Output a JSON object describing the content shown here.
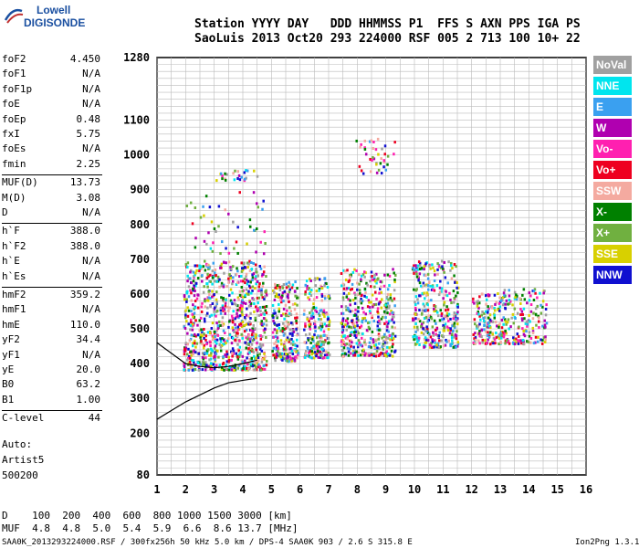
{
  "logo": {
    "line1": "Lowell",
    "line2": "DIGISONDE"
  },
  "header": {
    "labels": "Station YYYY DAY   DDD HHMMSS P1  FFS S AXN PPS IGA PS",
    "values": "SaoLuis 2013 Oct20 293 224000 RSF 005 2 713 100 10+ 22"
  },
  "params": [
    {
      "label": "foF2",
      "value": "4.450"
    },
    {
      "label": "foF1",
      "value": "N/A"
    },
    {
      "label": "foF1p",
      "value": "N/A"
    },
    {
      "label": "foE",
      "value": "N/A"
    },
    {
      "label": "foEp",
      "value": "0.48"
    },
    {
      "label": "fxI",
      "value": "5.75"
    },
    {
      "label": "foEs",
      "value": "N/A"
    },
    {
      "label": "fmin",
      "value": "2.25"
    },
    {
      "label": "MUF(D)",
      "value": "13.73"
    },
    {
      "label": "M(D)",
      "value": "3.08"
    },
    {
      "label": "D",
      "value": "N/A"
    },
    {
      "label": "h`F",
      "value": "388.0"
    },
    {
      "label": "h`F2",
      "value": "388.0"
    },
    {
      "label": "h`E",
      "value": "N/A"
    },
    {
      "label": "h`Es",
      "value": "N/A"
    },
    {
      "label": "hmF2",
      "value": "359.2"
    },
    {
      "label": "hmF1",
      "value": "N/A"
    },
    {
      "label": "hmE",
      "value": "110.0"
    },
    {
      "label": "yF2",
      "value": "34.4"
    },
    {
      "label": "yF1",
      "value": "N/A"
    },
    {
      "label": "yE",
      "value": "20.0"
    },
    {
      "label": "B0",
      "value": "63.2"
    },
    {
      "label": "B1",
      "value": "1.00"
    },
    {
      "label": "C-level",
      "value": "44"
    }
  ],
  "auto": {
    "line1": "Auto:",
    "line2": "Artist5",
    "line3": "500200"
  },
  "legend": [
    {
      "label": "NoVal",
      "color": "#a0a0a0"
    },
    {
      "label": "NNE",
      "color": "#00e5ee"
    },
    {
      "label": "E",
      "color": "#3aa0f0"
    },
    {
      "label": "W",
      "color": "#b000b0"
    },
    {
      "label": "Vo-",
      "color": "#ff20b0"
    },
    {
      "label": "Vo+",
      "color": "#ee0020"
    },
    {
      "label": "SSW",
      "color": "#f4aaa0"
    },
    {
      "label": "X-",
      "color": "#008000"
    },
    {
      "label": "X+",
      "color": "#70b040"
    },
    {
      "label": "SSE",
      "color": "#d8d000"
    },
    {
      "label": "NNW",
      "color": "#1010d0"
    }
  ],
  "muf_table": {
    "row1": "D    100  200  400  600  800 1000 1500 3000 [km]",
    "row2": "MUF  4.8  4.8  5.0  5.4  5.9  6.6  8.6 13.7 [MHz]"
  },
  "footer": {
    "left": "SAA0K_2013293224000.RSF / 300fx256h 50 kHz 5.0 km / DPS-4 SAA0K 903 / 2.6 S 315.8 E",
    "right": "Ion2Png 1.3.17"
  },
  "chart_data": {
    "type": "scatter",
    "x_ticks": [
      "1",
      "2",
      "3",
      "4",
      "5",
      "6",
      "7",
      "8",
      "9",
      "10",
      "11",
      "12",
      "13",
      "14",
      "15",
      "16"
    ],
    "y_ticks": [
      "80",
      "200",
      "300",
      "400",
      "500",
      "600",
      "700",
      "800",
      "900",
      "1000",
      "1100",
      "1280"
    ],
    "xlim": [
      1,
      16
    ],
    "ylim": [
      80,
      1280
    ],
    "grid": true,
    "echo_clusters": [
      {
        "x": [
          1.9,
          4.8
        ],
        "y": [
          385,
          700
        ],
        "density": 900
      },
      {
        "x": [
          5.0,
          5.9
        ],
        "y": [
          410,
          640
        ],
        "density": 240
      },
      {
        "x": [
          6.1,
          7.0
        ],
        "y": [
          420,
          650
        ],
        "density": 220
      },
      {
        "x": [
          7.4,
          9.3
        ],
        "y": [
          425,
          680
        ],
        "density": 420
      },
      {
        "x": [
          9.9,
          11.5
        ],
        "y": [
          450,
          700
        ],
        "density": 350
      },
      {
        "x": [
          12.0,
          14.6
        ],
        "y": [
          460,
          620
        ],
        "density": 320
      },
      {
        "x": [
          7.9,
          9.3
        ],
        "y": [
          950,
          1050
        ],
        "density": 40
      },
      {
        "x": [
          3.0,
          4.5
        ],
        "y": [
          930,
          960
        ],
        "density": 25
      },
      {
        "x": [
          2.0,
          4.8
        ],
        "y": [
          720,
          900
        ],
        "density": 50
      }
    ],
    "profile_upper": {
      "x": [
        1.0,
        1.5,
        2.0,
        2.5,
        3.0,
        3.5,
        4.0,
        4.5
      ],
      "y": [
        460,
        430,
        400,
        392,
        388,
        392,
        400,
        410
      ]
    },
    "profile_lower": {
      "x": [
        1.0,
        1.5,
        2.0,
        2.5,
        3.0,
        3.5,
        4.0,
        4.5
      ],
      "y": [
        240,
        265,
        290,
        310,
        330,
        345,
        352,
        358
      ]
    }
  }
}
